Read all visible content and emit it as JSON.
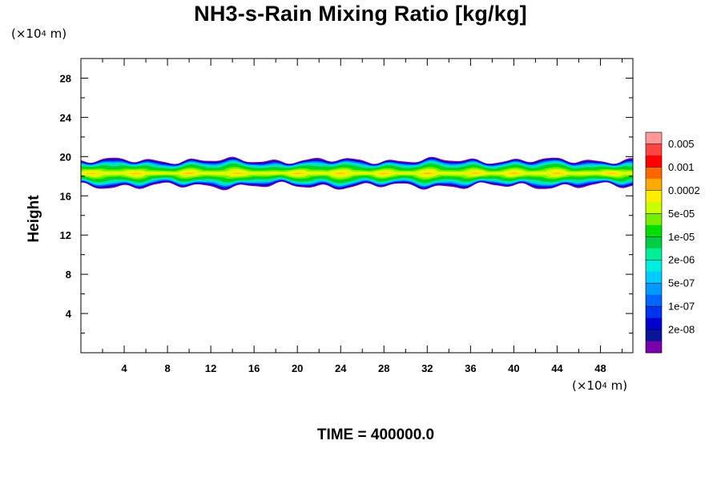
{
  "chart_data": {
    "type": "heatmap",
    "title": "NH3-s-Rain Mixing Ratio [kg/kg]",
    "ylabel": "Height",
    "xlabel": "",
    "x_unit": "(×10⁴ m)",
    "y_unit": "(×10⁴ m)",
    "footer": "TIME = 400000.0",
    "xlim": [
      0,
      51
    ],
    "ylim": [
      0,
      30
    ],
    "x_ticks": [
      4,
      8,
      12,
      16,
      20,
      24,
      28,
      32,
      36,
      40,
      44,
      48
    ],
    "y_ticks": [
      4,
      8,
      12,
      16,
      20,
      24,
      28
    ],
    "colorbar": {
      "labels": [
        "0.005",
        "0.001",
        "0.0002",
        "5e-05",
        "1e-05",
        "2e-06",
        "5e-07",
        "1e-07",
        "2e-08"
      ],
      "colors": [
        "#ff9999",
        "#ff4444",
        "#ff0000",
        "#ff6600",
        "#ffaa00",
        "#ffee00",
        "#ccff00",
        "#77ee00",
        "#00dd00",
        "#00cc44",
        "#00ee99",
        "#00eedd",
        "#00ccff",
        "#0099ff",
        "#0066ff",
        "#0033ee",
        "#0000cc",
        "#0a1499",
        "#7700aa"
      ]
    },
    "layer": {
      "bottom_range_approx": [
        16.5,
        17.5
      ],
      "top_range_approx": [
        19.0,
        20.2
      ],
      "peak_height_approx": 18.3,
      "cells_x": [
        1,
        5,
        10,
        14.5,
        20,
        24,
        28,
        32,
        36.5,
        40,
        44,
        49
      ]
    }
  }
}
